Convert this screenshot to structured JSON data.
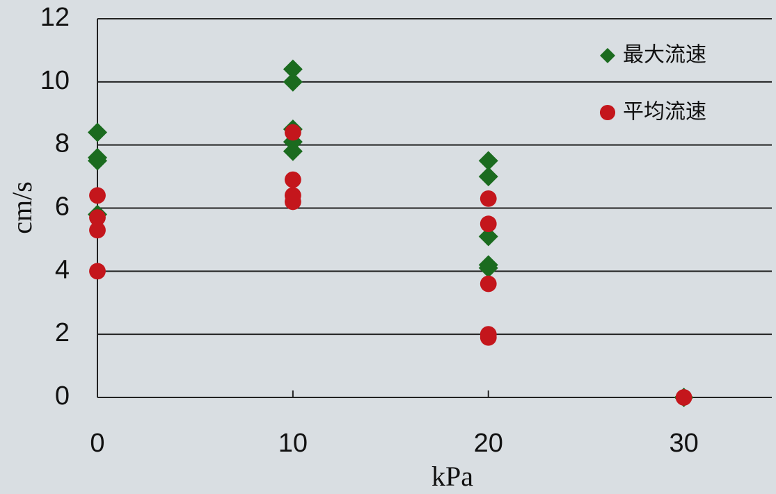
{
  "chart_data": {
    "type": "scatter",
    "x_label": "kPa",
    "y_label": "cm/s",
    "xlim": [
      0,
      34.5
    ],
    "ylim": [
      0,
      12
    ],
    "xticks": [
      0,
      10,
      20,
      30
    ],
    "yticks": [
      0,
      2,
      4,
      6,
      8,
      10,
      12
    ],
    "grid": true,
    "legend": "upper right",
    "series": [
      {
        "name": "最大流速",
        "color": "#1b6b1f",
        "marker": "diamond",
        "x": [
          0,
          0,
          0,
          0,
          10,
          10,
          10,
          10,
          10,
          20,
          20,
          20,
          20,
          20,
          30
        ],
        "values": [
          8.4,
          7.6,
          7.5,
          5.8,
          10.4,
          10.0,
          8.5,
          8.1,
          7.8,
          7.5,
          7.0,
          5.1,
          4.2,
          4.1,
          0
        ]
      },
      {
        "name": "平均流速",
        "color": "#c4161c",
        "marker": "circle",
        "x": [
          0,
          0,
          0,
          0,
          10,
          10,
          10,
          10,
          20,
          20,
          20,
          20,
          20,
          30
        ],
        "values": [
          6.4,
          5.7,
          5.3,
          4.0,
          8.4,
          6.9,
          6.4,
          6.2,
          6.3,
          5.5,
          3.6,
          2.0,
          1.9,
          0
        ]
      }
    ]
  }
}
